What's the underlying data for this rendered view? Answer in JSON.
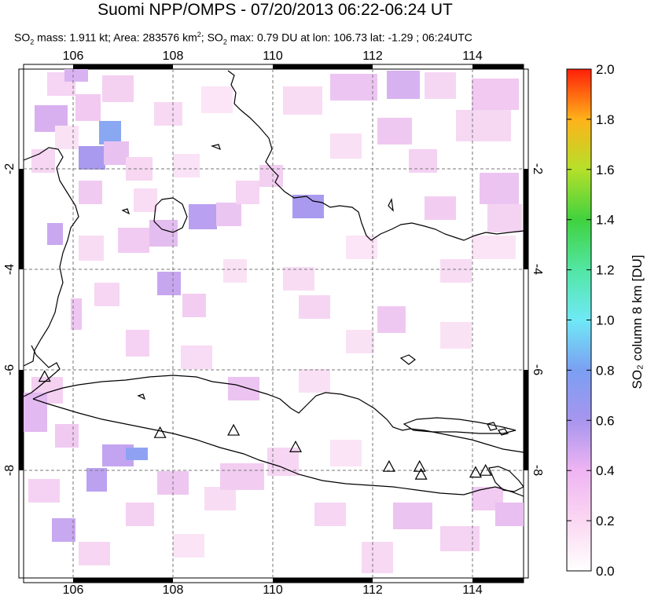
{
  "header": {
    "title": "Suomi NPP/OMPS - 07/20/2013 06:22-06:24 UT",
    "so2_mass_prefix": "SO",
    "so2_mass_text": " mass: 1.911 kt; Area: 283576 km",
    "so2_max_prefix": "; SO",
    "so2_max_text": " max: 0.79 DU at lon: 106.73 lat: -1.29 ; 06:24UTC"
  },
  "map": {
    "lon_range": [
      105,
      115
    ],
    "lat_range": [
      -10.2,
      0.2
    ],
    "lon_ticks": [
      "106",
      "108",
      "110",
      "112",
      "114"
    ],
    "lat_ticks": [
      "-2",
      "-4",
      "-6",
      "-8"
    ],
    "volcanoes": [
      {
        "lon": 105.42,
        "lat": -6.1
      },
      {
        "lon": 107.73,
        "lat": -7.25
      },
      {
        "lon": 109.2,
        "lat": -7.2
      },
      {
        "lon": 110.44,
        "lat": -7.54
      },
      {
        "lon": 112.31,
        "lat": -7.94
      },
      {
        "lon": 112.92,
        "lat": -7.94
      },
      {
        "lon": 112.95,
        "lat": -8.1
      },
      {
        "lon": 114.04,
        "lat": -8.06
      },
      {
        "lon": 114.24,
        "lat": -8.02
      }
    ]
  },
  "colorbar": {
    "label": "SO₂ column 8 km [DU]",
    "ticks": [
      "0.0",
      "0.2",
      "0.4",
      "0.6",
      "0.8",
      "1.0",
      "1.2",
      "1.4",
      "1.6",
      "1.8",
      "2.0"
    ],
    "range": [
      0,
      2
    ]
  }
}
